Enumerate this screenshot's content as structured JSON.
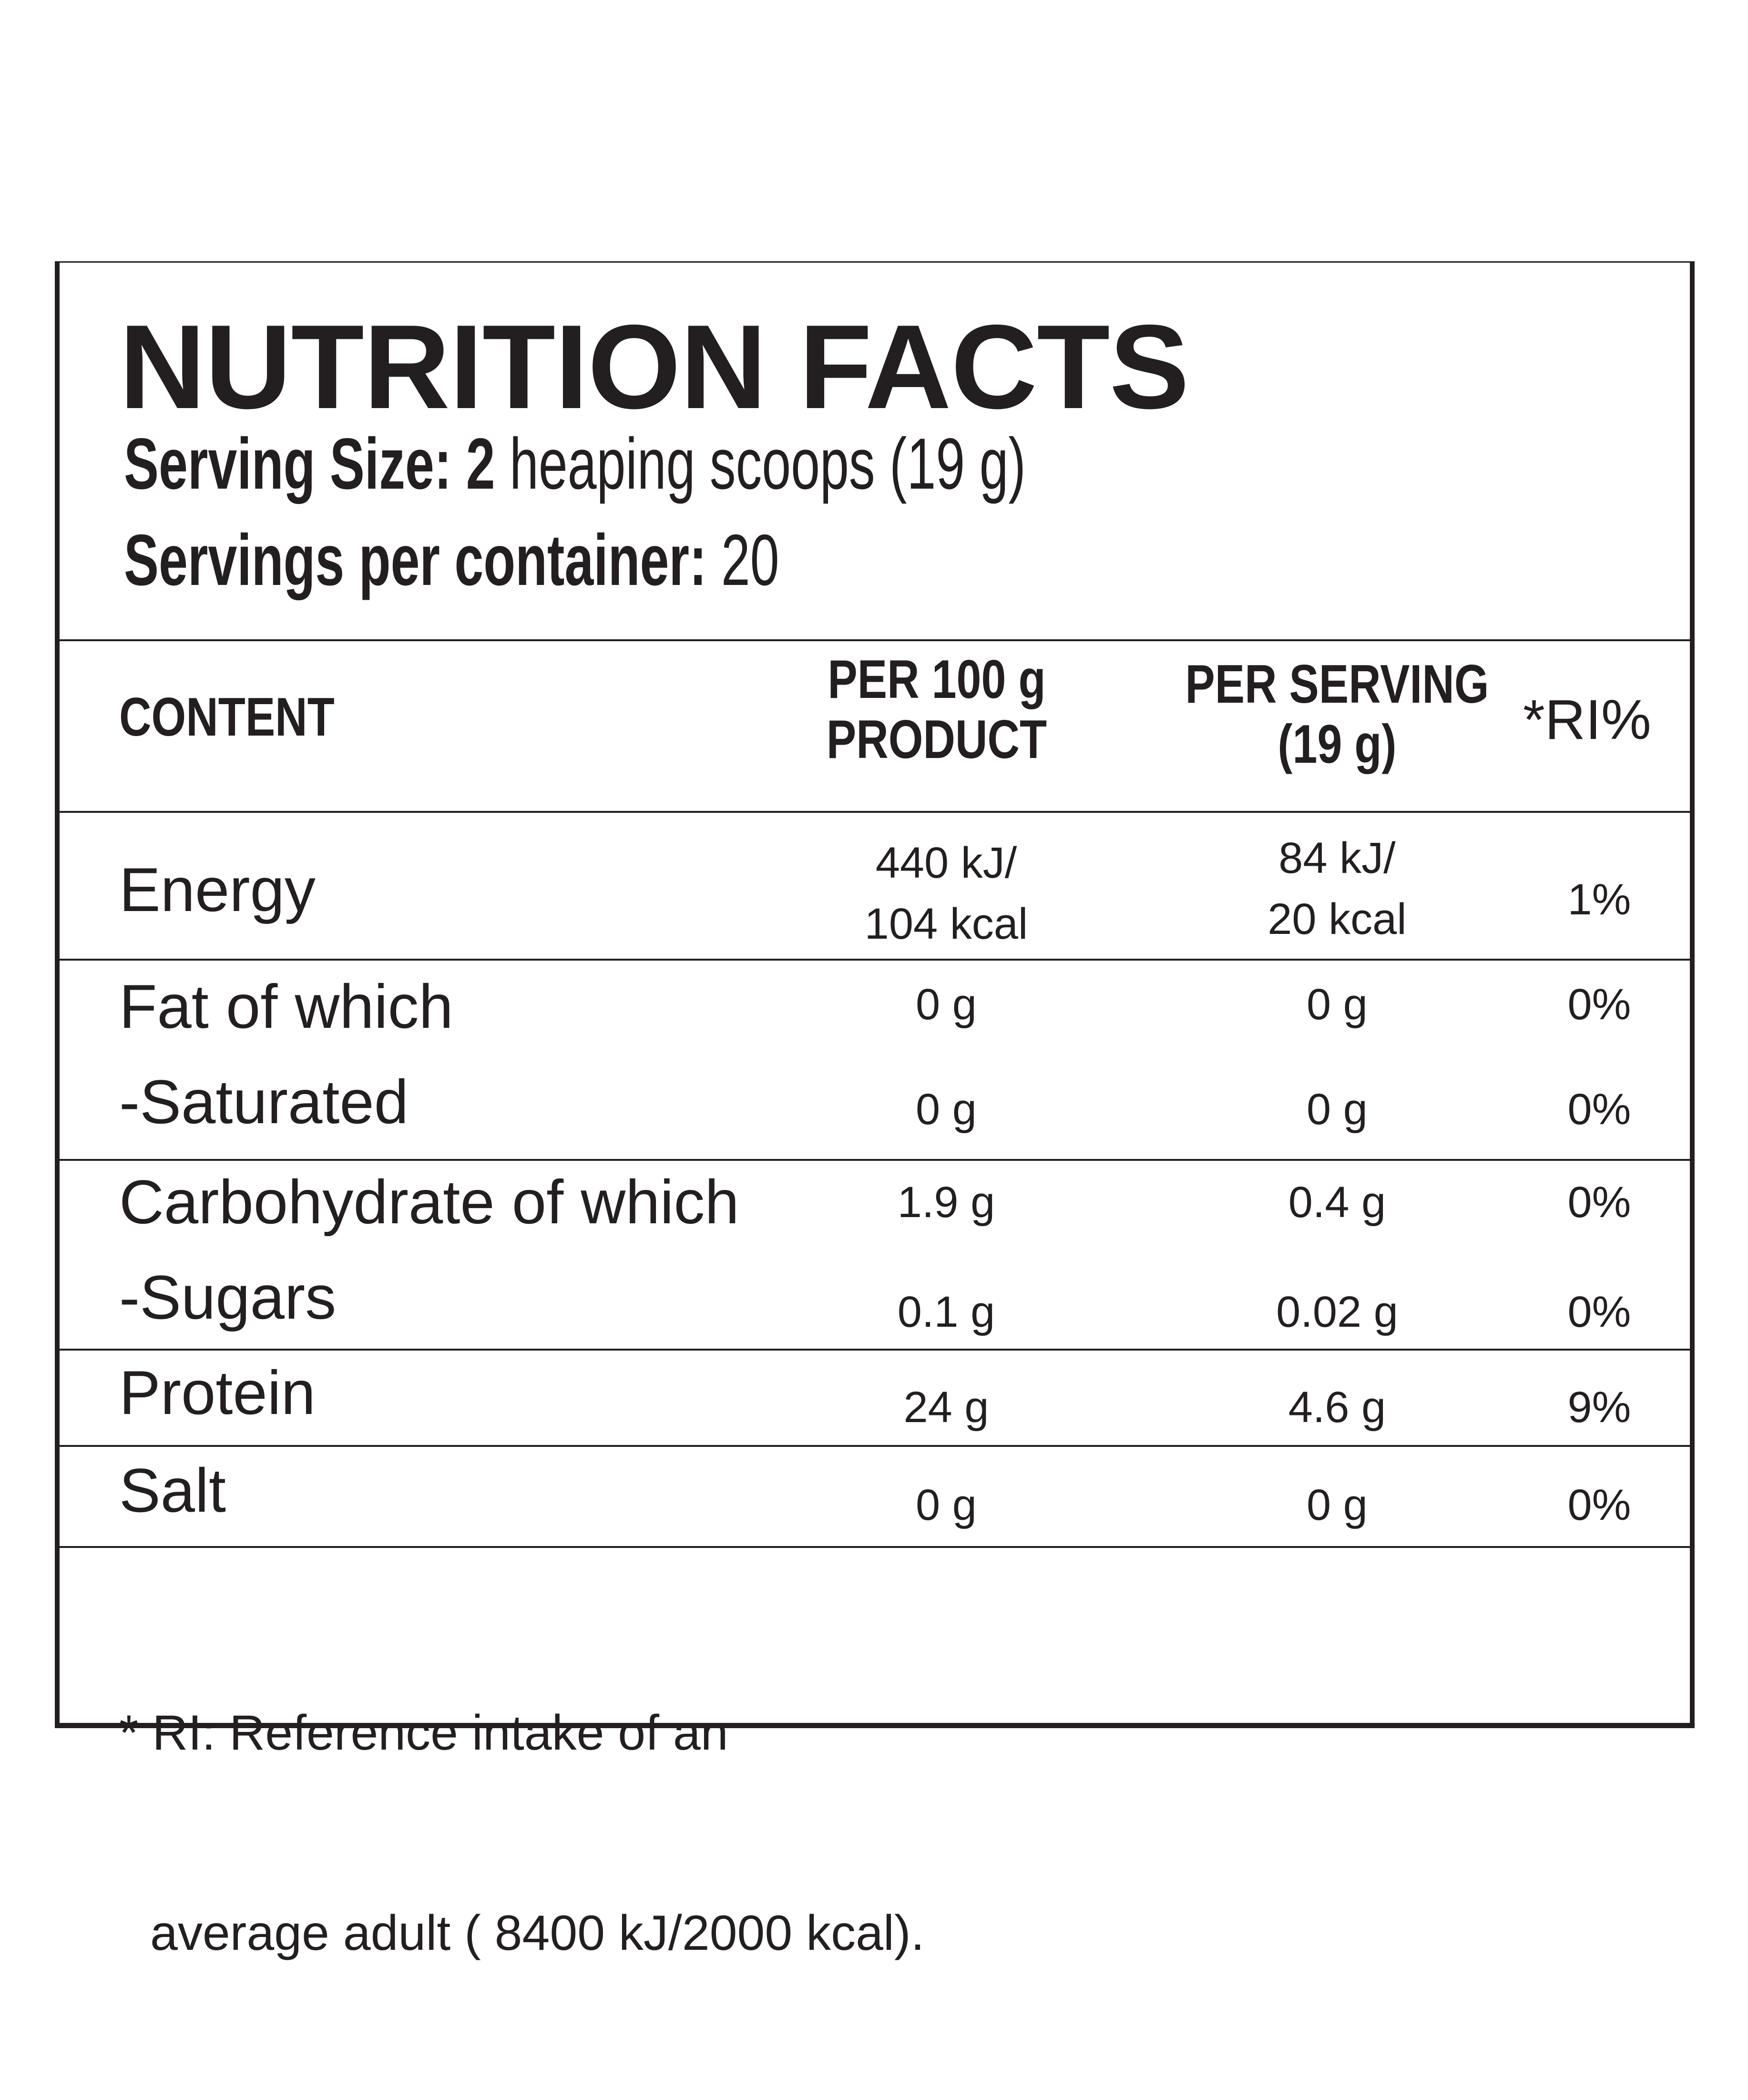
{
  "label": {
    "title": "NUTRITION FACTS",
    "serving_size": {
      "label": "Serving Size:",
      "value_bold": "2",
      "value": "heaping scoops (19 g)"
    },
    "servings_per_container": {
      "label": "Servings per container:",
      "value": "20"
    }
  },
  "table": {
    "headers": {
      "content": "CONTENT",
      "per100_line1": "PER 100 g",
      "per100_line2": "PRODUCT",
      "perserving_line1": "PER SERVING",
      "perserving_line2": "(19 g)",
      "ri": "*RI%"
    },
    "rows": [
      {
        "name": "Energy",
        "per100_line1": "440 kJ/",
        "per100_line2": "104 kcal",
        "perserving_line1": "84 kJ/",
        "perserving_line2": "20 kcal",
        "ri": "1%"
      },
      {
        "name": "Fat of which",
        "per100": "0 g",
        "perserving": "0 g",
        "ri": "0%"
      },
      {
        "name": "-Saturated",
        "per100": "0 g",
        "perserving": "0 g",
        "ri": "0%"
      },
      {
        "name": "Carbohydrate of which",
        "per100": "1.9 g",
        "perserving": "0.4 g",
        "ri": "0%"
      },
      {
        "name": "-Sugars",
        "per100": "0.1 g",
        "perserving": "0.02 g",
        "ri": "0%"
      },
      {
        "name": "Protein",
        "per100": "24 g",
        "perserving": "4.6 g",
        "ri": "9%"
      },
      {
        "name": "Salt",
        "per100": "0 g",
        "perserving": "0 g",
        "ri": "0%"
      }
    ]
  },
  "footnote": {
    "line1": "* RI: Reference intake of an",
    "line2": "average adult ( 8400 kJ/2000 kcal)."
  },
  "colors": {
    "ink": "#231f20",
    "background": "#ffffff"
  }
}
